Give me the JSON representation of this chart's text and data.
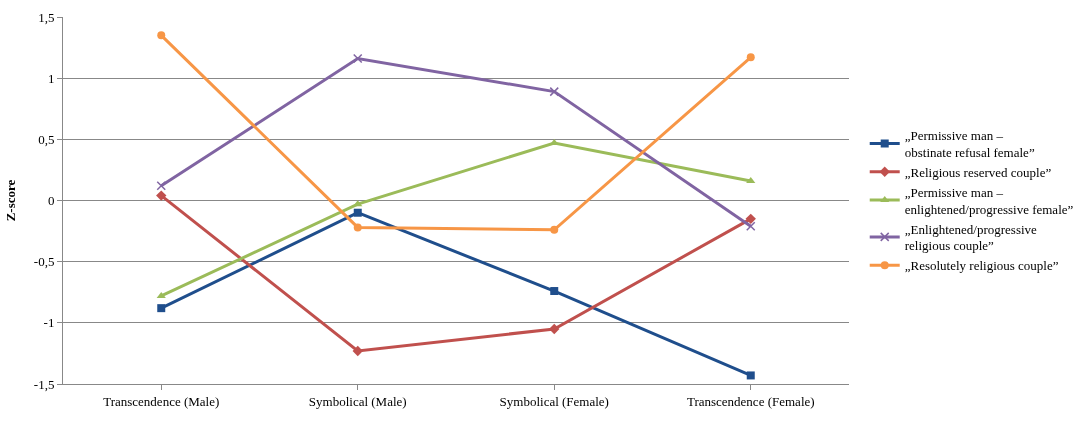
{
  "chart_data": {
    "type": "line",
    "ylabel": "Z-score",
    "categories": [
      "Transcendence (Male)",
      "Symbolical (Male)",
      "Symbolical (Female)",
      "Transcendence (Female)"
    ],
    "series": [
      {
        "name": "„Permissive man –\nobstinate refusal female”",
        "color": "#1f4e8c",
        "marker": "square",
        "values": [
          -0.88,
          -0.1,
          -0.74,
          -1.43
        ]
      },
      {
        "name": "„Religious reserved couple”",
        "color": "#c0504d",
        "marker": "diamond",
        "values": [
          0.04,
          -1.23,
          -1.05,
          -0.15
        ]
      },
      {
        "name": "„Permissive man –\nenlightened/progressive female”",
        "color": "#9bbb59",
        "marker": "triangle",
        "values": [
          -0.78,
          -0.03,
          0.47,
          0.16
        ]
      },
      {
        "name": "„Enlightened/progressive\nreligious couple”",
        "color": "#8064a2",
        "marker": "cross",
        "values": [
          0.12,
          1.16,
          0.89,
          -0.21
        ]
      },
      {
        "name": "„Resolutely religious couple”",
        "color": "#f79646",
        "marker": "circle",
        "values": [
          1.35,
          -0.22,
          -0.24,
          1.17
        ]
      }
    ],
    "ylim": [
      -1.5,
      1.5
    ],
    "yticks": [
      {
        "value": -1.5,
        "label": "-1,5"
      },
      {
        "value": -1,
        "label": "-1"
      },
      {
        "value": -0.5,
        "label": "-0,5"
      },
      {
        "value": 0,
        "label": "0"
      },
      {
        "value": 0.5,
        "label": "0,5"
      },
      {
        "value": 1,
        "label": "1"
      },
      {
        "value": 1.5,
        "label": "1,5"
      }
    ],
    "grid": "y",
    "legend": "right",
    "line_style": "solid"
  }
}
